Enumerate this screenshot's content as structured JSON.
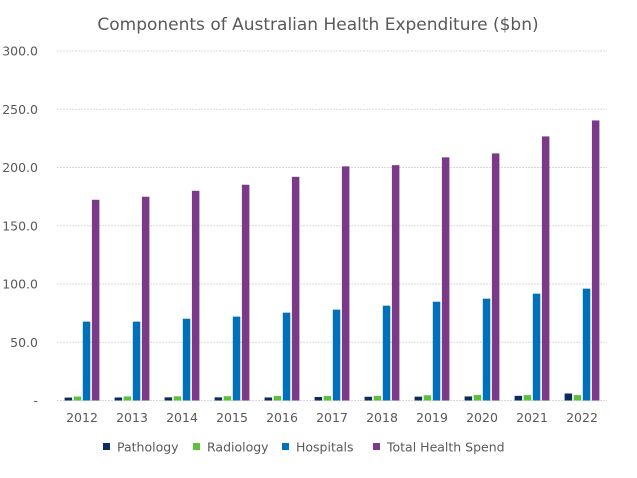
{
  "chart_data": {
    "type": "bar",
    "title": "Components of Australian Health Expenditure ($bn)",
    "xlabel": "",
    "ylabel": "",
    "ylim": [
      0,
      300
    ],
    "yticks": [
      0,
      50,
      100,
      150,
      200,
      250,
      300
    ],
    "ytick_labels": [
      "-",
      "50.0",
      "100.0",
      "150.0",
      "200.0",
      "250.0",
      "300.0"
    ],
    "grid": true,
    "legend_position": "bottom",
    "categories": [
      "2012",
      "2013",
      "2014",
      "2015",
      "2016",
      "2017",
      "2018",
      "2019",
      "2020",
      "2021",
      "2022"
    ],
    "series": [
      {
        "name": "Pathology",
        "color": "#0c2b5c",
        "values": [
          2.5,
          2.6,
          2.7,
          2.7,
          2.6,
          3.0,
          3.2,
          3.3,
          3.5,
          4.0,
          6.0
        ]
      },
      {
        "name": "Radiology",
        "color": "#5dc13b",
        "values": [
          3.4,
          3.5,
          3.6,
          3.7,
          3.9,
          3.9,
          4.0,
          4.5,
          4.8,
          4.6,
          4.6
        ]
      },
      {
        "name": "Hospitals",
        "color": "#0071b8",
        "values": [
          67.7,
          67.7,
          70.2,
          72.0,
          75.4,
          78.0,
          81.4,
          84.8,
          87.4,
          91.7,
          96.0
        ]
      },
      {
        "name": "Total Health Spend",
        "color": "#7b3a88",
        "values": [
          172.3,
          174.9,
          180.0,
          185.2,
          192.0,
          201.0,
          202.0,
          208.7,
          212.1,
          226.7,
          240.4
        ]
      }
    ]
  }
}
